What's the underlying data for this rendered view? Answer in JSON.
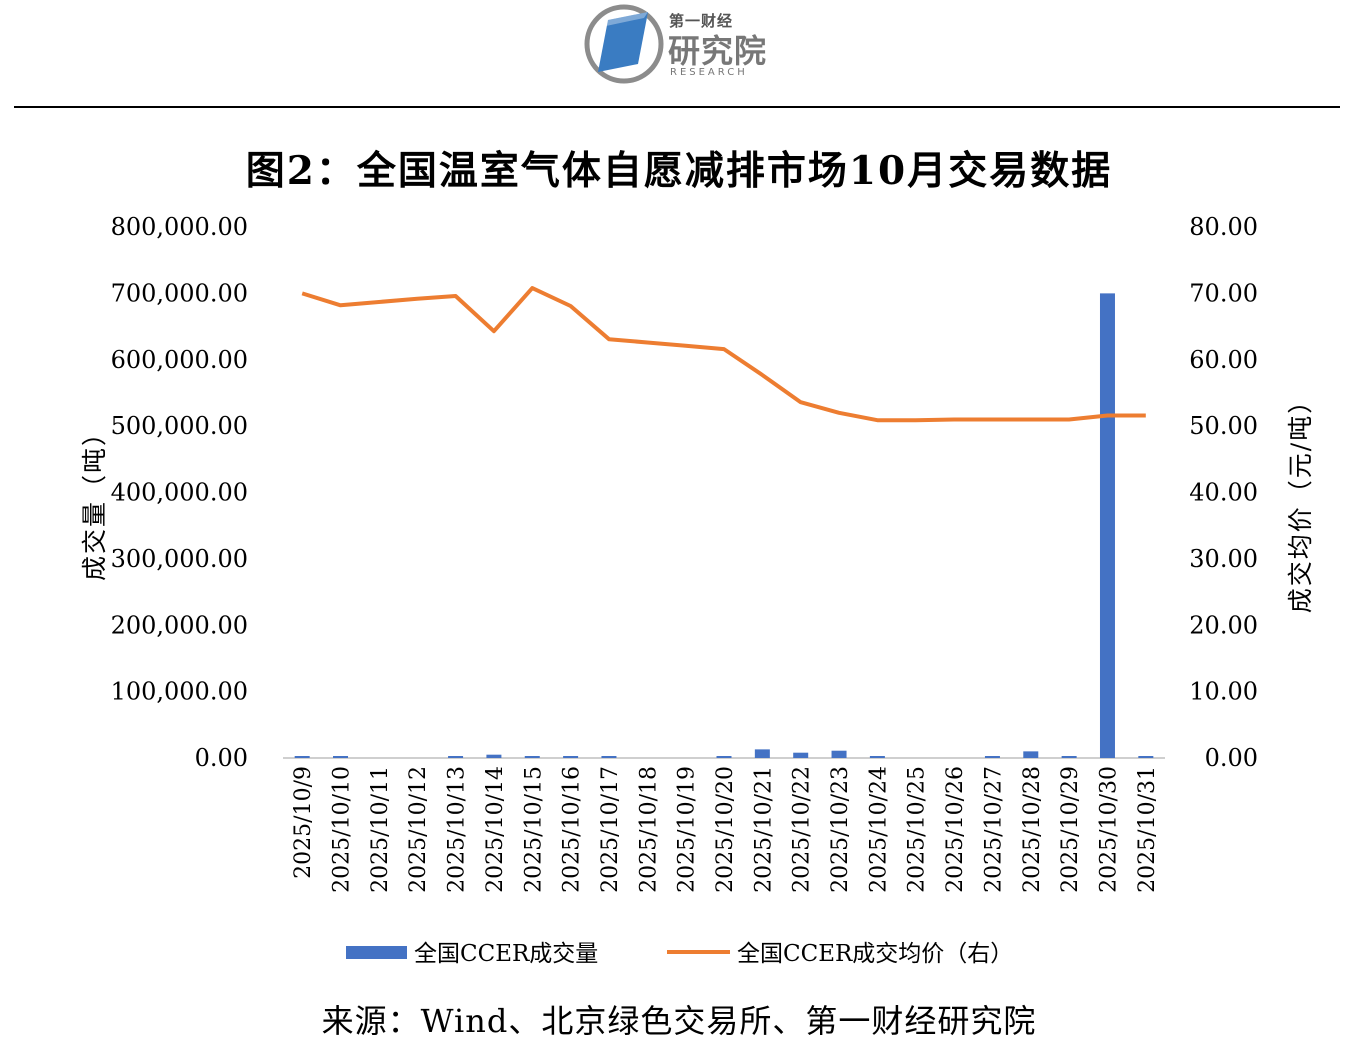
{
  "logo": {
    "top_text": "第一财经",
    "main_text": "研究院",
    "sub_text": "RESEARCH"
  },
  "title": "图2：全国温室气体自愿减排市场10月交易数据",
  "source": "来源：Wind、北京绿色交易所、第一财经研究院",
  "colors": {
    "bar": "#4472C4",
    "line": "#ED7D31",
    "axis": "#BFBFBF",
    "logo_blue": "#3A7CC2",
    "logo_gray": "#8C8C8C"
  },
  "chart_data": {
    "type": "bar+line",
    "categories": [
      "2025/10/9",
      "2025/10/10",
      "2025/10/11",
      "2025/10/12",
      "2025/10/13",
      "2025/10/14",
      "2025/10/15",
      "2025/10/16",
      "2025/10/17",
      "2025/10/18",
      "2025/10/19",
      "2025/10/20",
      "2025/10/21",
      "2025/10/22",
      "2025/10/23",
      "2025/10/24",
      "2025/10/25",
      "2025/10/26",
      "2025/10/27",
      "2025/10/28",
      "2025/10/29",
      "2025/10/30",
      "2025/10/31"
    ],
    "series": [
      {
        "name": "全国CCER成交量",
        "kind": "bar",
        "axis": "left",
        "values": [
          3000,
          1500,
          0,
          0,
          1500,
          5000,
          1500,
          1500,
          1000,
          0,
          0,
          1000,
          13000,
          8000,
          11000,
          1500,
          0,
          0,
          1000,
          10000,
          1500,
          700000,
          1000
        ]
      },
      {
        "name": "全国CCER成交均价（右）",
        "kind": "line",
        "axis": "right",
        "values": [
          70.0,
          68.2,
          68.7,
          69.2,
          69.6,
          64.3,
          70.8,
          68.1,
          63.1,
          62.6,
          62.1,
          61.6,
          57.7,
          53.6,
          52.0,
          50.9,
          50.9,
          51.0,
          51.0,
          51.0,
          51.0,
          51.6,
          51.6
        ]
      }
    ],
    "y_left": {
      "label": "成交量（吨）",
      "range": [
        0,
        800000
      ],
      "ticks": [
        "0.00",
        "100,000.00",
        "200,000.00",
        "300,000.00",
        "400,000.00",
        "500,000.00",
        "600,000.00",
        "700,000.00",
        "800,000.00"
      ]
    },
    "y_right": {
      "label": "成交均价（元/吨）",
      "range": [
        0,
        80
      ],
      "ticks": [
        "0.00",
        "10.00",
        "20.00",
        "30.00",
        "40.00",
        "50.00",
        "60.00",
        "70.00",
        "80.00"
      ]
    },
    "grid": false,
    "legend": "bottom"
  }
}
